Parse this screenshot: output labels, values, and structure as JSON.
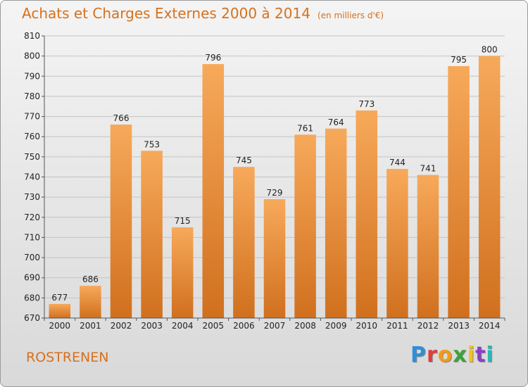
{
  "title": "Achats et Charges Externes 2000 à 2014",
  "subtitle": "(en milliers d'€)",
  "place": "ROSTRENEN",
  "logo_text": "Proxiti",
  "colors": {
    "accent": "#d6711e",
    "bar_top": "#f7a95a",
    "bar_bottom": "#d0701e"
  },
  "chart_data": {
    "type": "bar",
    "title": "Achats et Charges Externes 2000 à 2014",
    "xlabel": "",
    "ylabel": "",
    "ylim": [
      670,
      810
    ],
    "yticks": [
      670,
      680,
      690,
      700,
      710,
      720,
      730,
      740,
      750,
      760,
      770,
      780,
      790,
      800,
      810
    ],
    "grid": true,
    "categories": [
      "2000",
      "2001",
      "2002",
      "2003",
      "2004",
      "2005",
      "2006",
      "2007",
      "2008",
      "2009",
      "2010",
      "2011",
      "2012",
      "2013",
      "2014"
    ],
    "values": [
      677,
      686,
      766,
      753,
      715,
      796,
      745,
      729,
      761,
      764,
      773,
      744,
      741,
      795,
      800
    ]
  }
}
